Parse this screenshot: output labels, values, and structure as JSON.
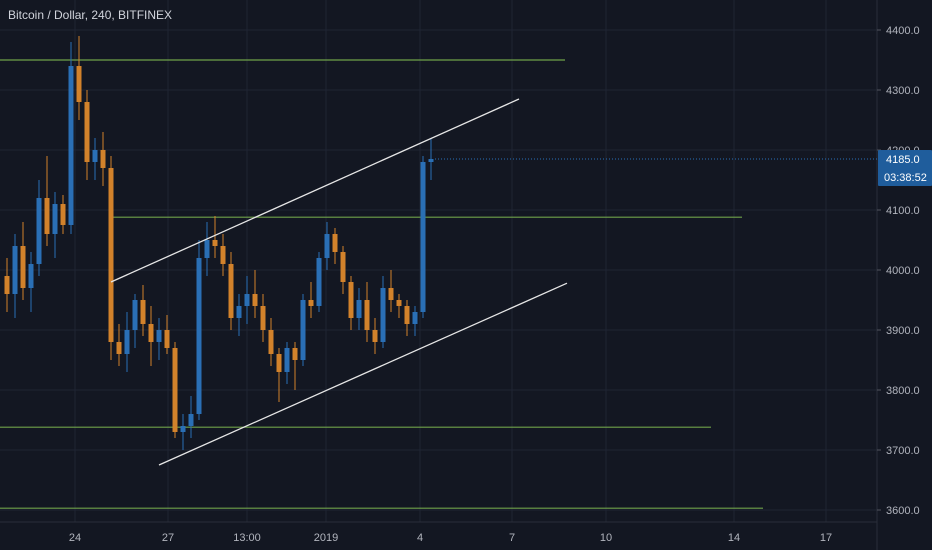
{
  "header": {
    "title": "Bitcoin / Dollar, 240, BITFINEX"
  },
  "colors": {
    "background": "#131722",
    "grid": "#1f2433",
    "text": "#b2b5be",
    "up": "#2a6fb5",
    "down": "#d2822b",
    "hline": "#6fa24a",
    "channel": "#e6e6e6",
    "price_tag": "#1f5d9c",
    "price_tag_text": "#ffffff"
  },
  "chart_data": {
    "type": "candlestick",
    "title": "Bitcoin / Dollar, 240, BITFINEX",
    "ylim": [
      3580,
      4450
    ],
    "y_ticks": [
      3600,
      3700,
      3800,
      3900,
      4000,
      4100,
      4200,
      4300,
      4400
    ],
    "y_tick_labels": [
      "3600.0",
      "3700.0",
      "3800.0",
      "3900.0",
      "4000.0",
      "4100.0",
      "4200.0",
      "4300.0",
      "4400.0"
    ],
    "x_tick_labels": [
      "24",
      "27",
      "13:00",
      "2019",
      "4",
      "7",
      "10",
      "14",
      "17"
    ],
    "grid": true,
    "current_price": {
      "label": "4185.0",
      "value": 4185
    },
    "countdown": "03:38:52",
    "horizontal_levels": [
      4350,
      4088,
      3738,
      3603
    ],
    "channel_lines": [
      {
        "name": "upper",
        "p1": {
          "bar": 13,
          "price": 3980
        },
        "p2": {
          "bar": 64,
          "price": 4285
        }
      },
      {
        "name": "lower",
        "p1": {
          "bar": 19,
          "price": 3675
        },
        "p2": {
          "bar": 70,
          "price": 3978
        }
      }
    ],
    "candles": [
      [
        3990,
        4020,
        3930,
        3960
      ],
      [
        3960,
        4060,
        3920,
        4040
      ],
      [
        4040,
        4080,
        3950,
        3970
      ],
      [
        3970,
        4030,
        3930,
        4010
      ],
      [
        4010,
        4150,
        3990,
        4120
      ],
      [
        4120,
        4190,
        4040,
        4060
      ],
      [
        4060,
        4130,
        4020,
        4110
      ],
      [
        4110,
        4125,
        4060,
        4075
      ],
      [
        4075,
        4380,
        4060,
        4340
      ],
      [
        4340,
        4390,
        4250,
        4280
      ],
      [
        4280,
        4300,
        4150,
        4180
      ],
      [
        4180,
        4220,
        4150,
        4200
      ],
      [
        4200,
        4230,
        4140,
        4170
      ],
      [
        4170,
        4190,
        3850,
        3880
      ],
      [
        3880,
        3910,
        3840,
        3860
      ],
      [
        3860,
        3930,
        3830,
        3900
      ],
      [
        3900,
        3960,
        3870,
        3950
      ],
      [
        3950,
        3975,
        3890,
        3910
      ],
      [
        3910,
        3940,
        3840,
        3880
      ],
      [
        3880,
        3920,
        3850,
        3900
      ],
      [
        3900,
        3925,
        3860,
        3870
      ],
      [
        3870,
        3880,
        3720,
        3730
      ],
      [
        3730,
        3760,
        3700,
        3740
      ],
      [
        3740,
        3790,
        3720,
        3760
      ],
      [
        3760,
        4050,
        3750,
        4020
      ],
      [
        4020,
        4080,
        3990,
        4050
      ],
      [
        4050,
        4090,
        4020,
        4040
      ],
      [
        4040,
        4060,
        3990,
        4010
      ],
      [
        4010,
        4030,
        3900,
        3920
      ],
      [
        3920,
        3960,
        3890,
        3940
      ],
      [
        3940,
        3990,
        3910,
        3960
      ],
      [
        3960,
        4000,
        3920,
        3940
      ],
      [
        3940,
        3960,
        3880,
        3900
      ],
      [
        3900,
        3920,
        3840,
        3860
      ],
      [
        3860,
        3870,
        3780,
        3830
      ],
      [
        3830,
        3880,
        3810,
        3870
      ],
      [
        3870,
        3880,
        3800,
        3850
      ],
      [
        3850,
        3960,
        3840,
        3950
      ],
      [
        3950,
        3980,
        3920,
        3940
      ],
      [
        3940,
        4030,
        3930,
        4020
      ],
      [
        4020,
        4080,
        4000,
        4060
      ],
      [
        4060,
        4070,
        4010,
        4030
      ],
      [
        4030,
        4040,
        3960,
        3980
      ],
      [
        3980,
        3990,
        3900,
        3920
      ],
      [
        3920,
        3970,
        3900,
        3950
      ],
      [
        3950,
        3980,
        3880,
        3900
      ],
      [
        3900,
        3920,
        3860,
        3880
      ],
      [
        3880,
        3990,
        3870,
        3970
      ],
      [
        3970,
        4000,
        3930,
        3950
      ],
      [
        3950,
        3960,
        3920,
        3940
      ],
      [
        3940,
        3950,
        3890,
        3910
      ],
      [
        3910,
        3940,
        3890,
        3930
      ],
      [
        3930,
        4190,
        3920,
        4180
      ],
      [
        4180,
        4220,
        4150,
        4185
      ]
    ]
  }
}
